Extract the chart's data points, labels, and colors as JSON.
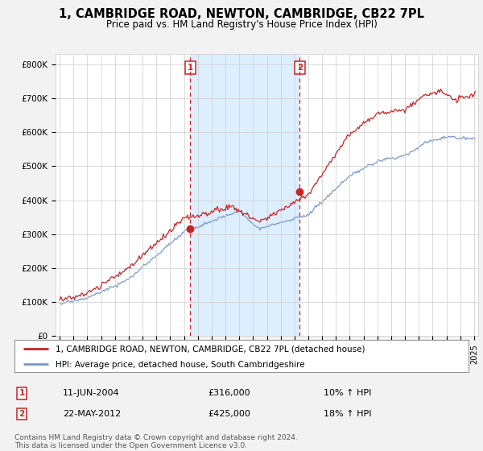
{
  "title": "1, CAMBRIDGE ROAD, NEWTON, CAMBRIDGE, CB22 7PL",
  "subtitle": "Price paid vs. HM Land Registry's House Price Index (HPI)",
  "background_color": "#f2f2f2",
  "plot_bg_color": "#ffffff",
  "shaded_region_color": "#ddeeff",
  "grid_color": "#cccccc",
  "ylabel_ticks": [
    "£0",
    "£100K",
    "£200K",
    "£300K",
    "£400K",
    "£500K",
    "£600K",
    "£700K",
    "£800K"
  ],
  "ytick_values": [
    0,
    100000,
    200000,
    300000,
    400000,
    500000,
    600000,
    700000,
    800000
  ],
  "ylim": [
    0,
    830000
  ],
  "xlim_start": 1994.7,
  "xlim_end": 2025.3,
  "purchase1_x": 2004.44,
  "purchase1_y": 316000,
  "purchase2_x": 2012.38,
  "purchase2_y": 425000,
  "purchase1_date": "11-JUN-2004",
  "purchase1_price": "£316,000",
  "purchase1_hpi": "10% ↑ HPI",
  "purchase2_date": "22-MAY-2012",
  "purchase2_price": "£425,000",
  "purchase2_hpi": "18% ↑ HPI",
  "line1_color": "#cc2222",
  "line2_color": "#7799cc",
  "legend_line1": "1, CAMBRIDGE ROAD, NEWTON, CAMBRIDGE, CB22 7PL (detached house)",
  "legend_line2": "HPI: Average price, detached house, South Cambridgeshire",
  "footer": "Contains HM Land Registry data © Crown copyright and database right 2024.\nThis data is licensed under the Open Government Licence v3.0.",
  "xtick_years": [
    1995,
    1996,
    1997,
    1998,
    1999,
    2000,
    2001,
    2002,
    2003,
    2004,
    2005,
    2006,
    2007,
    2008,
    2009,
    2010,
    2011,
    2012,
    2013,
    2014,
    2015,
    2016,
    2017,
    2018,
    2019,
    2020,
    2021,
    2022,
    2023,
    2024,
    2025
  ]
}
